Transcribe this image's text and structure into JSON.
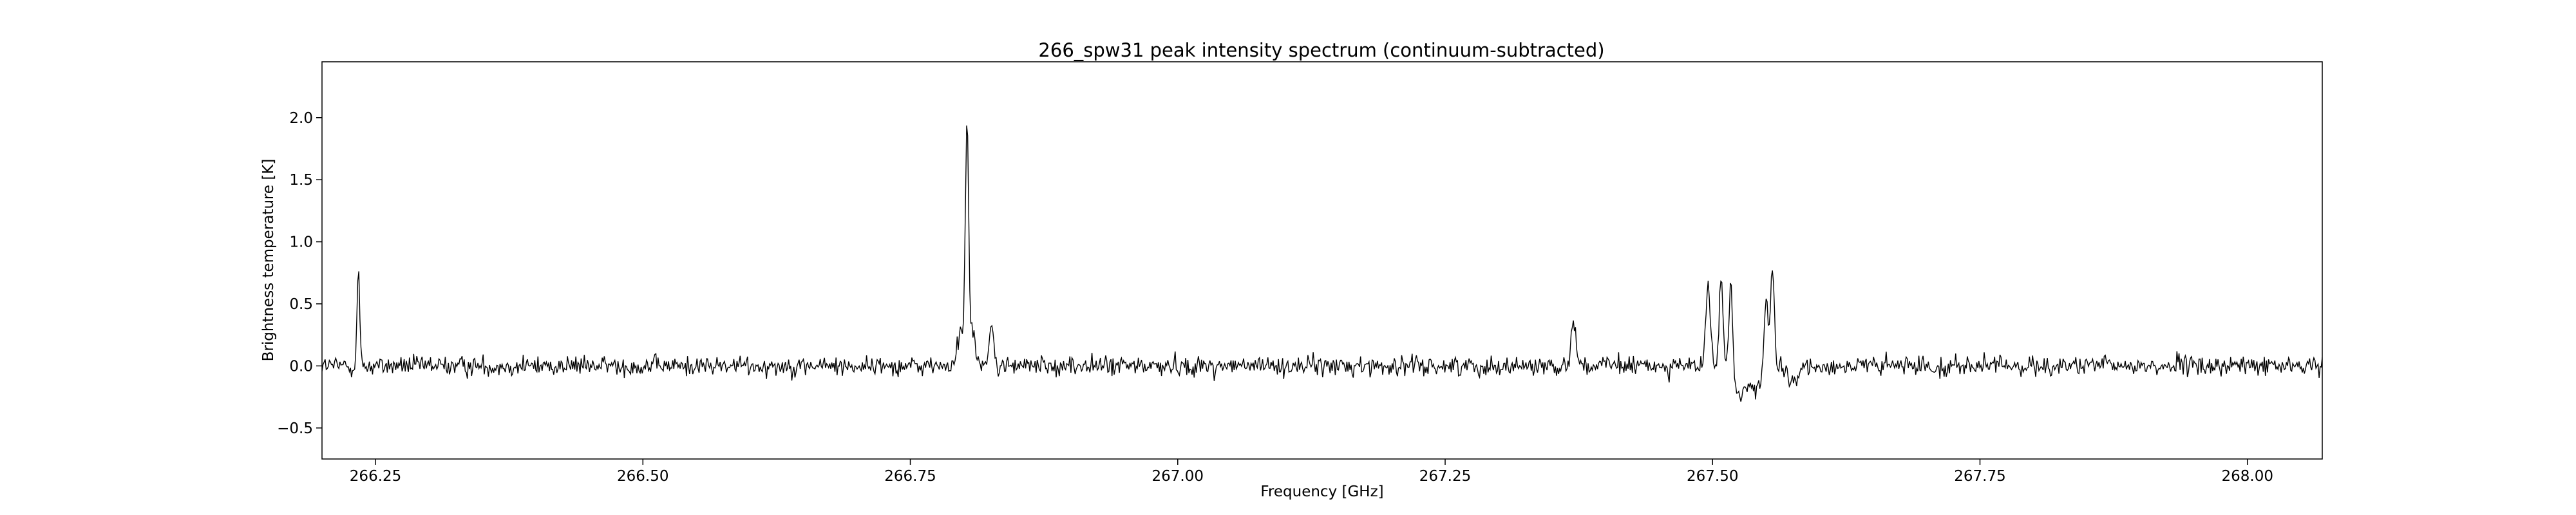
{
  "chart_data": {
    "type": "line",
    "title": "266_spw31 peak intensity spectrum (continuum-subtracted)",
    "xlabel": "Frequency [GHz]",
    "ylabel": "Brightness temperature [K]",
    "xlim": [
      266.2,
      268.07
    ],
    "ylim": [
      -0.75,
      2.45
    ],
    "xticks": [
      266.25,
      266.5,
      266.75,
      267.0,
      267.25,
      267.5,
      267.75,
      268.0
    ],
    "xtick_labels": [
      "266.25",
      "266.50",
      "266.75",
      "267.00",
      "267.25",
      "267.50",
      "267.75",
      "268.00"
    ],
    "yticks": [
      -0.5,
      0.0,
      0.5,
      1.0,
      1.5,
      2.0
    ],
    "ytick_labels": [
      "−0.5",
      "0.0",
      "0.5",
      "1.0",
      "1.5",
      "2.0"
    ],
    "grid": false,
    "line_color": "#000000",
    "series": [
      {
        "x_range": [
          266.2,
          268.07
        ],
        "n_points": 1900,
        "noise_sigma_K": 0.055,
        "features": [
          {
            "center": 266.234,
            "peak": 0.78,
            "width": 0.0012
          },
          {
            "center": 266.803,
            "peak": 1.93,
            "width": 0.0016
          },
          {
            "center": 266.797,
            "peak": 0.25,
            "width": 0.003
          },
          {
            "center": 266.809,
            "peak": 0.32,
            "width": 0.002
          },
          {
            "center": 266.826,
            "peak": 0.35,
            "width": 0.0018
          },
          {
            "center": 267.37,
            "peak": 0.4,
            "width": 0.0022
          },
          {
            "center": 267.496,
            "peak": 0.6,
            "width": 0.0022
          },
          {
            "center": 267.508,
            "peak": 0.65,
            "width": 0.0018
          },
          {
            "center": 267.517,
            "peak": 0.75,
            "width": 0.0016
          },
          {
            "center": 267.526,
            "peak": -0.25,
            "width": 0.005
          },
          {
            "center": 267.542,
            "peak": -0.2,
            "width": 0.005
          },
          {
            "center": 267.55,
            "peak": 0.6,
            "width": 0.0018
          },
          {
            "center": 267.556,
            "peak": 0.8,
            "width": 0.0016
          },
          {
            "center": 267.575,
            "peak": -0.15,
            "width": 0.005
          }
        ]
      }
    ]
  }
}
